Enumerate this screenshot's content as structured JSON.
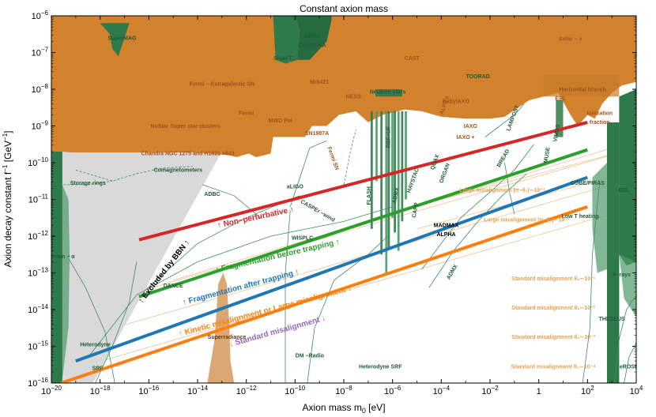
{
  "chart_data": {
    "type": "area",
    "title": "Constant  axion  mass",
    "xlabel": "Axion mass  m",
    "xlabel_sub": "0",
    "xlabel_unit": " [eV]",
    "ylabel": "Axion decay constant  f",
    "ylabel_sup": "−1",
    "ylabel_unit": " [GeV",
    "ylabel_unit_sup": "−1",
    "ylabel_unit_close": "]",
    "x_scale": "log",
    "y_scale": "log",
    "xlim_log10": [
      -20,
      4
    ],
    "ylim_log10": [
      -16,
      -6
    ],
    "x_ticks": [
      {
        "exp": -20,
        "label": "10",
        "sup": "−20"
      },
      {
        "exp": -18,
        "label": "10",
        "sup": "−18"
      },
      {
        "exp": -16,
        "label": "10",
        "sup": "−16"
      },
      {
        "exp": -14,
        "label": "10",
        "sup": "−14"
      },
      {
        "exp": -12,
        "label": "10",
        "sup": "−12"
      },
      {
        "exp": -10,
        "label": "10",
        "sup": "−10"
      },
      {
        "exp": -8,
        "label": "10",
        "sup": "−8"
      },
      {
        "exp": -6,
        "label": "10",
        "sup": "−6"
      },
      {
        "exp": -4,
        "label": "10",
        "sup": "−4"
      },
      {
        "exp": -2,
        "label": "10",
        "sup": "−2"
      },
      {
        "exp": 0,
        "label": "1",
        "sup": ""
      },
      {
        "exp": 2,
        "label": "10",
        "sup": "2"
      },
      {
        "exp": 4,
        "label": "10",
        "sup": "4"
      }
    ],
    "y_ticks": [
      {
        "exp": -16,
        "label": "10",
        "sup": "−16"
      },
      {
        "exp": -15,
        "label": "10",
        "sup": "−15"
      },
      {
        "exp": -14,
        "label": "10",
        "sup": "−14"
      },
      {
        "exp": -13,
        "label": "10",
        "sup": "−13"
      },
      {
        "exp": -12,
        "label": "10",
        "sup": "−12"
      },
      {
        "exp": -11,
        "label": "10",
        "sup": "−11"
      },
      {
        "exp": -10,
        "label": "10",
        "sup": "−10"
      },
      {
        "exp": -9,
        "label": "10",
        "sup": "−9"
      },
      {
        "exp": -8,
        "label": "10",
        "sup": "−8"
      },
      {
        "exp": -7,
        "label": "10",
        "sup": "−7"
      },
      {
        "exp": -6,
        "label": "10",
        "sup": "−6"
      }
    ],
    "colors": {
      "orange_excluded": "#d2822d",
      "dark_green": "#2f7a4a",
      "medium_green": "#4e9a6a",
      "light_green_line": "#3e8e5e",
      "grey_bbn": "#d9d9d9",
      "superradiance": "#dba772",
      "red": "#d62728",
      "green": "#2ca02c",
      "blue": "#1f77b4",
      "orange_line": "#ff7f0e",
      "purple": "#9467bd",
      "faint_orange": "#f0b070"
    },
    "series": [
      {
        "name": "↑ Non−perturbative ↑",
        "color": "#d62728",
        "log10_x": [
          -16.4,
          2.0
        ],
        "log10_y": [
          -12.1,
          -8.9
        ]
      },
      {
        "name": "↑ Fragmentation  before trapping ↑",
        "color": "#2ca02c",
        "log10_x": [
          -16.4,
          2.0
        ],
        "log10_y": [
          -13.65,
          -9.65
        ]
      },
      {
        "name": "↑ Fragmentation  after trapping ↑",
        "color": "#1f77b4",
        "log10_x": [
          -19.0,
          2.0
        ],
        "log10_y": [
          -15.4,
          -10.4
        ]
      },
      {
        "name": "↑ Kinetic misalignment  or Large misalignment ↓",
        "color": "#ff7f0e",
        "log10_x": [
          -19.6,
          2.0
        ],
        "log10_y": [
          -16.0,
          -11.2
        ]
      }
    ],
    "extra_line_labels": [
      {
        "text": "↓ Standard  misalignment ↓",
        "color": "#9467bd",
        "lx": -10.7,
        "ly": -14.65,
        "angle": -15.5
      }
    ],
    "bbn_label": "↑ Excluded by BBN ↑",
    "region_labels": [
      {
        "text": "SuperMAG",
        "lx": -17.1,
        "ly": -6.66,
        "color": "#1f5a38"
      },
      {
        "text": "SHAFT",
        "lx": -10.5,
        "ly": -7.2,
        "color": "#1f5a38"
      },
      {
        "text": "ABRA",
        "lx": -9.3,
        "ly": -6.6,
        "color": "#1f5a38"
      },
      {
        "text": "CADABRA",
        "lx": -9.3,
        "ly": -6.85,
        "color": "#1f5a38"
      },
      {
        "text": "CAST",
        "lx": -5.2,
        "ly": -7.2,
        "color": "#a0531a"
      },
      {
        "text": "Solar − ν",
        "lx": 1.3,
        "ly": -6.68,
        "color": "#a0531a"
      },
      {
        "text": "Fermi  − Extragalactic   SN",
        "lx": -13.0,
        "ly": -7.9,
        "color": "#a0531a"
      },
      {
        "text": "Mrk421",
        "lx": -9.0,
        "ly": -7.85,
        "color": "#a0531a"
      },
      {
        "text": "HESS",
        "lx": -7.6,
        "ly": -8.25,
        "color": "#a0531a"
      },
      {
        "text": "Neutron  stars",
        "lx": -6.2,
        "ly": -8.12,
        "color": "#1f5a38"
      },
      {
        "text": "TOORAD",
        "lx": -2.5,
        "ly": -7.7,
        "color": "#1f5a38"
      },
      {
        "text": "Horizontal   branch",
        "lx": 1.8,
        "ly": -8.05,
        "color": "#a0531a"
      },
      {
        "text": "BabyIAXO",
        "lx": -3.4,
        "ly": -8.38,
        "color": "#a0531a"
      },
      {
        "text": "Fermi",
        "lx": -12.0,
        "ly": -8.7,
        "color": "#a0531a"
      },
      {
        "text": "MWD  Pol",
        "lx": -10.6,
        "ly": -8.9,
        "color": "#a0531a"
      },
      {
        "text": "NuStar  Super  star clusters",
        "lx": -14.5,
        "ly": -9.05,
        "color": "#a0531a"
      },
      {
        "text": "IAXO",
        "lx": -2.8,
        "ly": -9.05,
        "color": "#a0531a"
      },
      {
        "text": "SN1987A",
        "lx": -9.1,
        "ly": -9.25,
        "color": "#a0531a"
      },
      {
        "text": "IAXO +",
        "lx": -3.0,
        "ly": -9.35,
        "color": "#a0531a"
      },
      {
        "text": "Chandra  NGC  1275  and  H1821 +643",
        "lx": -14.4,
        "ly": -9.8,
        "color": "#a0531a"
      },
      {
        "text": "Comagnetometers",
        "lx": -14.8,
        "ly": -10.25,
        "color": "#1f5a38"
      },
      {
        "text": "Storage   rings",
        "lx": -18.5,
        "ly": -10.6,
        "color": "#1f5a38"
      },
      {
        "text": "ADBC",
        "lx": -13.4,
        "ly": -10.9,
        "color": "#1f5a38"
      },
      {
        "text": "aLIGO",
        "lx": -10.0,
        "ly": -10.7,
        "color": "#1f5a38"
      },
      {
        "text": "DANCE",
        "lx": -15.0,
        "ly": -13.4,
        "color": "#1f5a38"
      },
      {
        "text": "WISPLC",
        "lx": -9.7,
        "ly": -12.1,
        "color": "#1f5a38"
      },
      {
        "text": "MADMAX",
        "lx": -3.8,
        "ly": -11.75,
        "color": "#000000"
      },
      {
        "text": "ALPHA",
        "lx": -3.8,
        "ly": -12.0,
        "color": "#000000"
      },
      {
        "text": "Lyman − α",
        "lx": -19.6,
        "ly": -12.6,
        "color": "#1f5a38"
      },
      {
        "text": "Superradiance",
        "lx": -12.8,
        "ly": -14.8,
        "color": "#6b3a12"
      },
      {
        "text": "DM −Radio",
        "lx": -9.4,
        "ly": -15.3,
        "color": "#1f5a38"
      },
      {
        "text": "Heterodyne  SRF",
        "lx": -6.5,
        "ly": -15.6,
        "color": "#1f5a38"
      },
      {
        "text": "Heterodyne",
        "lx": -18.2,
        "ly": -15.0,
        "color": "#1f5a38"
      },
      {
        "text": "SRF",
        "lx": -18.1,
        "ly": -15.65,
        "color": "#1f5a38"
      },
      {
        "text": "THESEUS",
        "lx": 3.0,
        "ly": -14.3,
        "color": "#1f5a38"
      },
      {
        "text": "eROSITA",
        "lx": 3.8,
        "ly": -15.6,
        "color": "#1f5a38"
      },
      {
        "text": "X−rays",
        "lx": 3.4,
        "ly": -13.1,
        "color": "#1f5a38"
      },
      {
        "text": "Low  T  heating",
        "lx": 1.7,
        "ly": -11.5,
        "color": "#1f5a38"
      },
      {
        "text": "COBE/FIRAS",
        "lx": 2.0,
        "ly": -10.6,
        "color": "#1f5a38"
      },
      {
        "text": "EBL",
        "lx": 0.9,
        "ly": -8.3,
        "color": "#a0531a"
      },
      {
        "text": "EBL",
        "lx": 3.5,
        "ly": -10.8,
        "color": "#1f5a38"
      },
      {
        "text": "Ionization",
        "lx": 2.5,
        "ly": -8.7,
        "color": "#a0531a"
      },
      {
        "text": "fraction",
        "lx": 2.5,
        "ly": -8.95,
        "color": "#a0531a"
      },
      {
        "text": "Large  misalignment   |π−θ₀|∼10⁻¹",
        "lx": -1.5,
        "ly": -10.8,
        "color": "#e8a050"
      },
      {
        "text": "Large  misalignment   |π−θ₀|∼10⁻²",
        "lx": -0.5,
        "ly": -11.6,
        "color": "#e8a050"
      },
      {
        "text": "Standard  misalignment    θ₀∼10⁻¹",
        "lx": 0.6,
        "ly": -13.2,
        "color": "#e8a050"
      },
      {
        "text": "Standard  misalignment    θ₀∼10⁻²",
        "lx": 0.6,
        "ly": -14.0,
        "color": "#e8a050"
      },
      {
        "text": "Standard  misalignment    θ₀∼10⁻³",
        "lx": 0.6,
        "ly": -14.8,
        "color": "#e8a050"
      },
      {
        "text": "Standard  misalignment    θ₀∼10⁻⁴",
        "lx": 0.6,
        "ly": -15.6,
        "color": "#e8a050"
      }
    ],
    "rotated_labels": [
      {
        "text": "Fermi  SN",
        "lx": -8.5,
        "ly": -9.9,
        "angle": -70,
        "color": "#a0531a"
      },
      {
        "text": "CASPEr −wind",
        "lx": -9.1,
        "ly": -11.35,
        "angle": -30,
        "color": "#1f5a38"
      },
      {
        "text": "FLASH",
        "lx": -6.9,
        "ly": -10.9,
        "angle": 90,
        "color": "#1f5a38"
      },
      {
        "text": "RBF+UF",
        "lx": -6.1,
        "ly": -9.3,
        "angle": 90,
        "color": "#1f5a38"
      },
      {
        "text": "HAYSTAC",
        "lx": -5.1,
        "ly": -10.5,
        "angle": 70,
        "color": "#1f5a38"
      },
      {
        "text": "CAPP",
        "lx": -5.0,
        "ly": -11.3,
        "angle": 80,
        "color": "#1f5a38"
      },
      {
        "text": "ADMX",
        "lx": -5.8,
        "ly": -10.9,
        "angle": 80,
        "color": "#1f5a38"
      },
      {
        "text": "QUAX",
        "lx": -4.2,
        "ly": -10.0,
        "angle": 70,
        "color": "#1f5a38"
      },
      {
        "text": "ORGAN",
        "lx": -3.8,
        "ly": -10.3,
        "angle": 70,
        "color": "#1f5a38"
      },
      {
        "text": "BREAD",
        "lx": -1.4,
        "ly": -9.9,
        "angle": 60,
        "color": "#1f5a38"
      },
      {
        "text": "LAMPOST",
        "lx": -1.0,
        "ly": -8.8,
        "angle": 70,
        "color": "#1f5a38"
      },
      {
        "text": "MUSE",
        "lx": 0.4,
        "ly": -9.8,
        "angle": 80,
        "color": "#1f5a38"
      },
      {
        "text": "VIMOS",
        "lx": 0.8,
        "ly": -9.2,
        "angle": 80,
        "color": "#1f5a38"
      },
      {
        "text": "ADMX",
        "lx": -3.5,
        "ly": -13.0,
        "angle": 60,
        "color": "#1f5a38"
      },
      {
        "text": "ALPS II",
        "lx": -3.8,
        "ly": -8.45,
        "angle": 70,
        "color": "#a0531a"
      }
    ]
  }
}
